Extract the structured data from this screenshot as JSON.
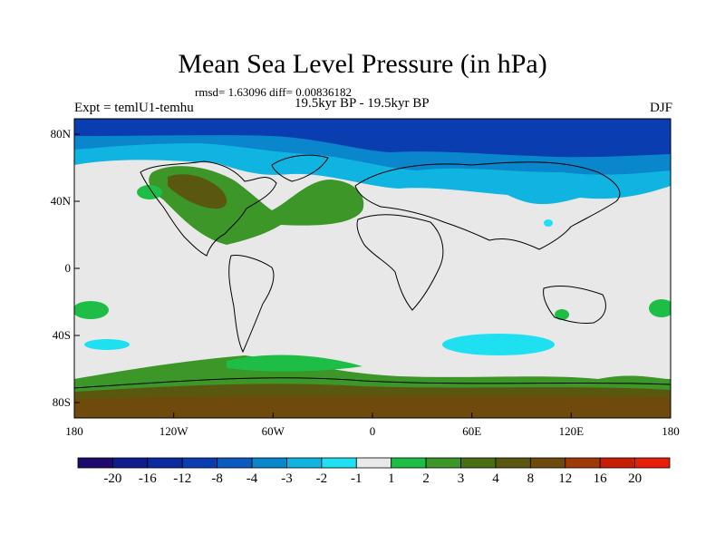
{
  "map": {
    "title": "Mean Sea Level Pressure (in hPa)",
    "stats": "rmsd= 1.63096 diff= 0.00836182",
    "period": "19.5kyr BP - 19.5kyr BP",
    "experiment": "Expt = temlU1-temhu",
    "season": "DJF",
    "lat_ticks": [
      "80N",
      "40N",
      "0",
      "40S",
      "80S"
    ],
    "lon_ticks": [
      "180",
      "120W",
      "60W",
      "0",
      "60E",
      "120E",
      "180"
    ]
  },
  "colorbar": {
    "colors": [
      "#1e0a6e",
      "#0c1c8c",
      "#0a2a9e",
      "#0a3eb0",
      "#0a5ac0",
      "#0a86cc",
      "#10b4e0",
      "#1ee0f0",
      "#e8e8e8",
      "#1ebe46",
      "#3c9628",
      "#4a6e14",
      "#5a5810",
      "#6e4a0c",
      "#9e3a08",
      "#c81e04",
      "#e81e0a"
    ],
    "labels": [
      "-20",
      "-16",
      "-12",
      "-8",
      "-4",
      "-3",
      "-2",
      "-1",
      "1",
      "2",
      "3",
      "4",
      "8",
      "12",
      "16",
      "20"
    ]
  }
}
